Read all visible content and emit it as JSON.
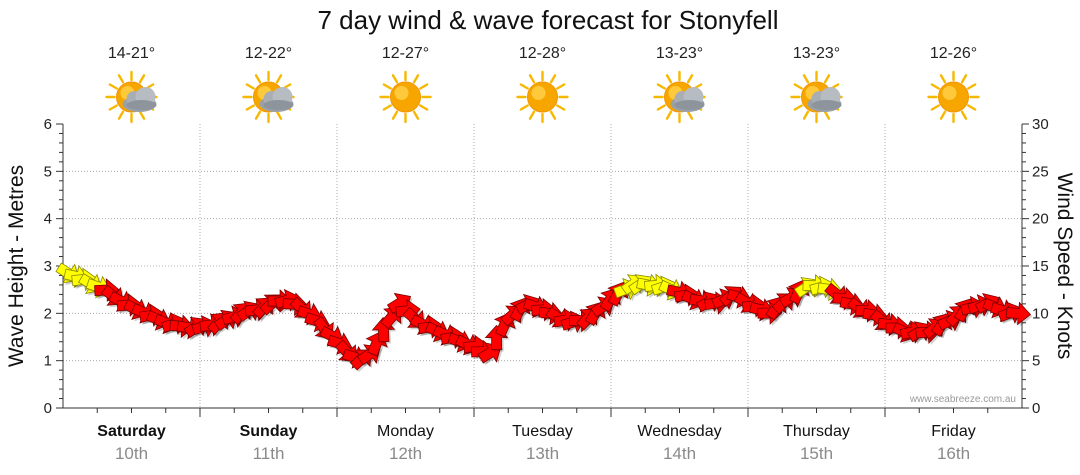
{
  "chart_data": {
    "type": "line",
    "title": "7 day wind & wave forecast for Stonyfell",
    "ylabel_left": "Wave Height - Metres",
    "ylabel_right": "Wind Speed - Knots",
    "ylim_left": [
      0,
      6
    ],
    "ylim_right": [
      0,
      30
    ],
    "yticks_left": [
      "0",
      "1",
      "2",
      "3",
      "4",
      "5",
      "6"
    ],
    "yticks_right": [
      "0",
      "5",
      "10",
      "15",
      "20",
      "25",
      "30"
    ],
    "credit": "www.seabreeze.com.au",
    "grid": true,
    "days": [
      {
        "name": "Saturday",
        "date": "10th",
        "temp": "14-21°",
        "icon": "sun-cloud-icon",
        "bold": true
      },
      {
        "name": "Sunday",
        "date": "11th",
        "temp": "12-22°",
        "icon": "sun-cloud-icon",
        "bold": true
      },
      {
        "name": "Monday",
        "date": "12th",
        "temp": "12-27°",
        "icon": "sun-icon",
        "bold": false
      },
      {
        "name": "Tuesday",
        "date": "13th",
        "temp": "12-28°",
        "icon": "sun-icon",
        "bold": false
      },
      {
        "name": "Wednesday",
        "date": "14th",
        "temp": "13-23°",
        "icon": "sun-cloud-icon",
        "bold": false
      },
      {
        "name": "Thursday",
        "date": "15th",
        "temp": "13-23°",
        "icon": "sun-cloud-icon",
        "bold": false
      },
      {
        "name": "Friday",
        "date": "16th",
        "temp": "12-26°",
        "icon": "sun-icon",
        "bold": false
      }
    ],
    "series": [
      {
        "name": "Wind Speed (knots)",
        "x_days": [
          0.0,
          0.15,
          0.3,
          0.45,
          0.6,
          0.75,
          0.9,
          1.0,
          1.15,
          1.3,
          1.45,
          1.6,
          1.75,
          1.9,
          2.0,
          2.1,
          2.2,
          2.3,
          2.45,
          2.6,
          2.75,
          2.9,
          3.0,
          3.1,
          3.25,
          3.4,
          3.55,
          3.7,
          3.85,
          4.0,
          4.15,
          4.3,
          4.45,
          4.6,
          4.75,
          4.9,
          5.0,
          5.15,
          5.3,
          5.45,
          5.6,
          5.75,
          5.9,
          6.0,
          6.15,
          6.3,
          6.45,
          6.6,
          6.75,
          6.9,
          7.0
        ],
        "values": [
          14.5,
          13.5,
          12.5,
          11,
          10,
          9,
          8.5,
          8.5,
          9,
          10,
          10.5,
          11.5,
          10.5,
          8.5,
          7,
          5.5,
          5,
          7,
          11,
          9,
          8,
          7,
          6.5,
          5.5,
          9.5,
          11,
          10,
          9,
          9.5,
          11.5,
          13,
          13,
          12.5,
          11.5,
          11,
          12,
          11,
          10,
          11.5,
          13,
          12.5,
          11,
          10,
          9,
          8,
          8,
          9,
          10.5,
          11,
          10,
          10
        ],
        "color_scale": {
          "yellow_when_knots_at_least": 12.5,
          "low": "#ff0000",
          "high": "#ffff00"
        }
      }
    ]
  }
}
